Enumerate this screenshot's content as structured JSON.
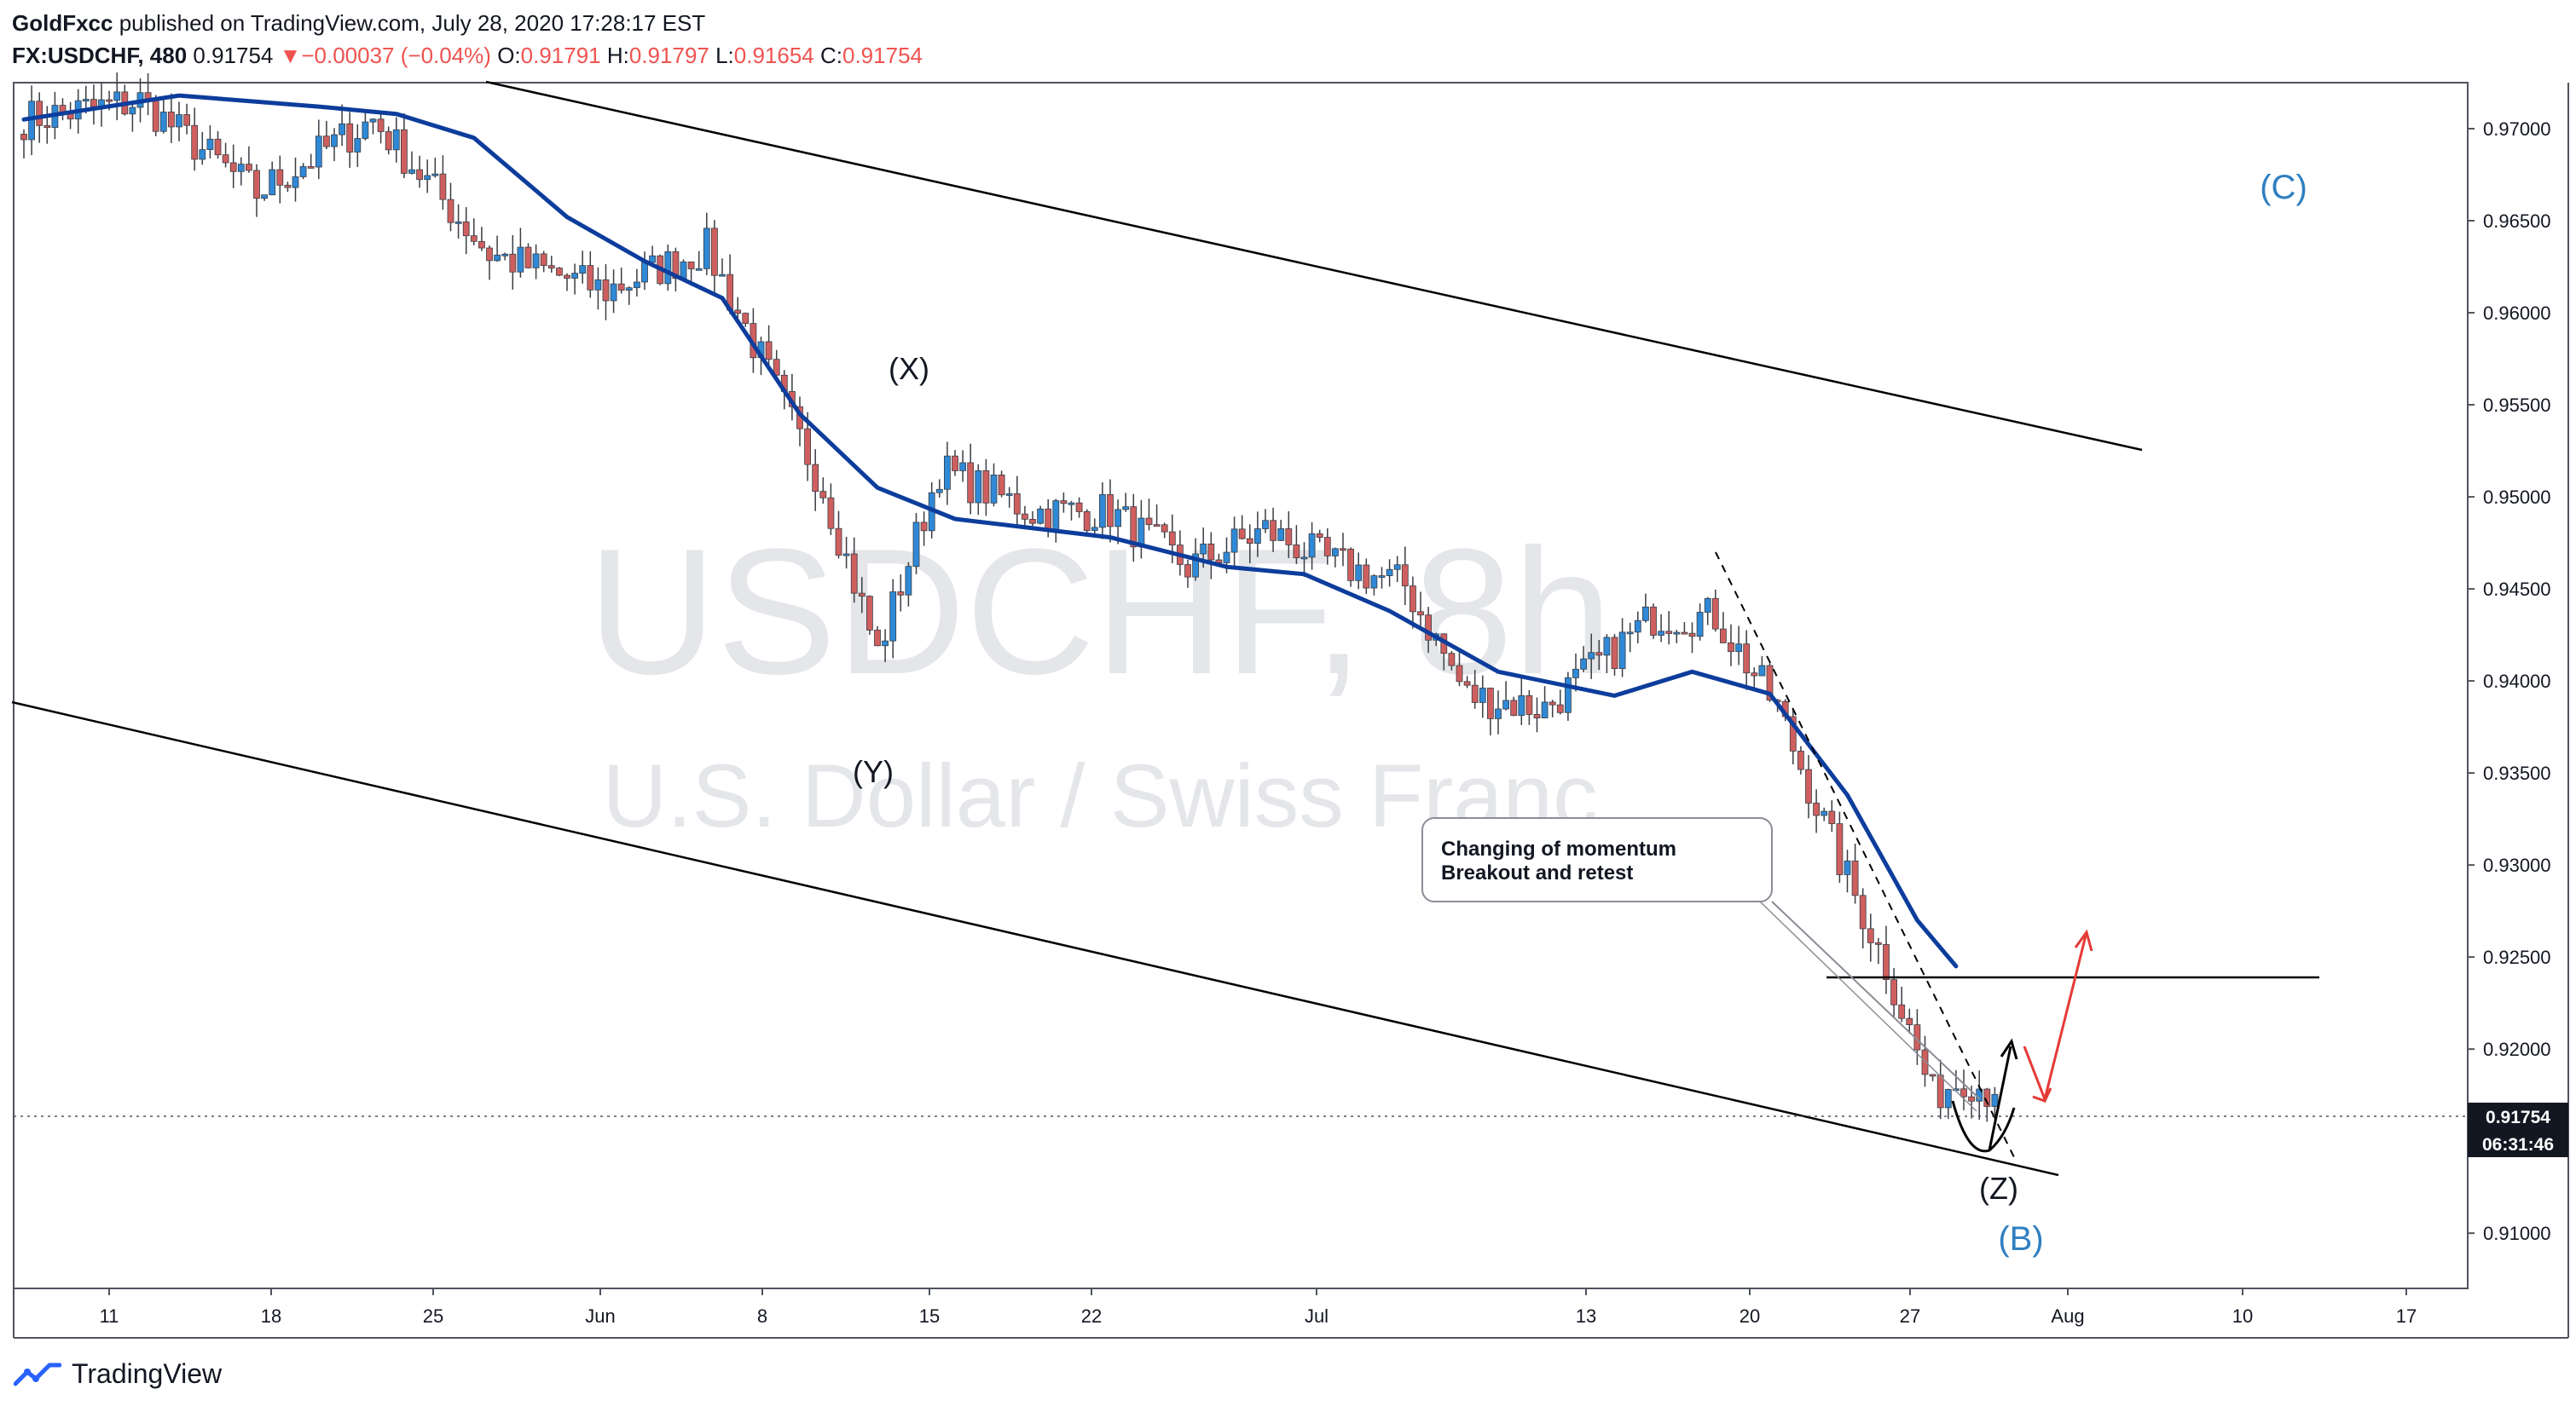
{
  "header": {
    "publisher": "GoldFxcc",
    "published_text": "published on TradingView.com, July 28, 2020 17:28:17 EST",
    "symbol": "FX:USDCHF, 480",
    "last": "0.91754",
    "change_arrow": "▼",
    "change": "−0.00037 (−0.04%)",
    "o_label": "O:",
    "o": "0.91791",
    "h_label": "H:",
    "h": "0.91797",
    "l_label": "L:",
    "l": "0.91654",
    "c_label": "C:",
    "c": "0.91754"
  },
  "watermark": {
    "line1": "USDCHF, 8h",
    "line2": "U.S. Dollar / Swiss Franc"
  },
  "price_tag": {
    "price": "0.91754",
    "countdown": "06:31:46"
  },
  "footer": {
    "brand": "TradingView",
    "logo_icon": "tradingview-logo-icon"
  },
  "colors": {
    "up": "#2f89d6",
    "down": "#cf5f5f",
    "ma": "#0d3d9c",
    "accent_blue": "#2f7fc1",
    "arrow_red": "#e53935"
  },
  "chart_data": {
    "type": "candlestick",
    "symbol": "FX:USDCHF",
    "interval": "480",
    "ylim": [
      0.907,
      0.9725
    ],
    "y_ticks": [
      "0.97000",
      "0.96500",
      "0.96000",
      "0.95500",
      "0.95000",
      "0.94500",
      "0.94000",
      "0.93500",
      "0.93000",
      "0.92500",
      "0.92000",
      "0.91500",
      "0.91000"
    ],
    "x_ticks": [
      "11",
      "18",
      "25",
      "Jun",
      "8",
      "15",
      "22",
      "Jul",
      "13",
      "20",
      "27",
      "Aug",
      "10",
      "17"
    ],
    "last_price": 0.91754,
    "key_points": [
      {
        "bar": 0,
        "close": 0.9705
      },
      {
        "bar": 15,
        "close": 0.9715
      },
      {
        "bar": 30,
        "close": 0.9665
      },
      {
        "bar": 45,
        "close": 0.9705
      },
      {
        "bar": 60,
        "close": 0.9632
      },
      {
        "bar": 75,
        "close": 0.9612
      },
      {
        "bar": 88,
        "close": 0.9635
      },
      {
        "bar": 95,
        "close": 0.9575
      },
      {
        "bar": 103,
        "close": 0.9505
      },
      {
        "bar": 110,
        "close": 0.9415
      },
      {
        "bar": 118,
        "close": 0.9515
      },
      {
        "bar": 130,
        "close": 0.9492
      },
      {
        "bar": 140,
        "close": 0.9492
      },
      {
        "bar": 150,
        "close": 0.9462
      },
      {
        "bar": 160,
        "close": 0.9482
      },
      {
        "bar": 168,
        "close": 0.9465
      },
      {
        "bar": 178,
        "close": 0.9452
      },
      {
        "bar": 186,
        "close": 0.9392
      },
      {
        "bar": 196,
        "close": 0.9385
      },
      {
        "bar": 210,
        "close": 0.9435
      },
      {
        "bar": 218,
        "close": 0.9435
      },
      {
        "bar": 226,
        "close": 0.9385
      },
      {
        "bar": 233,
        "close": 0.9312
      },
      {
        "bar": 240,
        "close": 0.9245
      },
      {
        "bar": 246,
        "close": 0.9175
      },
      {
        "bar": 250,
        "close": 0.9185
      },
      {
        "bar": 254,
        "close": 0.91754
      }
    ],
    "moving_average": {
      "color": "#0d3d9c",
      "points": [
        {
          "bar": 0,
          "value": 0.9705
        },
        {
          "bar": 20,
          "value": 0.9718
        },
        {
          "bar": 38,
          "value": 0.9712
        },
        {
          "bar": 48,
          "value": 0.9708
        },
        {
          "bar": 58,
          "value": 0.9695
        },
        {
          "bar": 70,
          "value": 0.9652
        },
        {
          "bar": 80,
          "value": 0.9628
        },
        {
          "bar": 90,
          "value": 0.9608
        },
        {
          "bar": 100,
          "value": 0.9545
        },
        {
          "bar": 110,
          "value": 0.9505
        },
        {
          "bar": 120,
          "value": 0.9488
        },
        {
          "bar": 140,
          "value": 0.9478
        },
        {
          "bar": 155,
          "value": 0.9462
        },
        {
          "bar": 165,
          "value": 0.9458
        },
        {
          "bar": 176,
          "value": 0.9438
        },
        {
          "bar": 190,
          "value": 0.9405
        },
        {
          "bar": 205,
          "value": 0.9392
        },
        {
          "bar": 215,
          "value": 0.9405
        },
        {
          "bar": 225,
          "value": 0.9393
        },
        {
          "bar": 235,
          "value": 0.9338
        },
        {
          "bar": 244,
          "value": 0.927
        },
        {
          "bar": 249,
          "value": 0.9245
        }
      ]
    },
    "annotations": {
      "wave_labels": [
        {
          "text": "(X)",
          "color": "#131722"
        },
        {
          "text": "(Y)",
          "color": "#131722"
        },
        {
          "text": "(Z)",
          "color": "#131722"
        },
        {
          "text": "(B)",
          "color": "#2f7fc1"
        },
        {
          "text": "(C)",
          "color": "#2f7fc1"
        }
      ],
      "callout_lines": [
        "Changing of momentum",
        "Breakout and retest"
      ],
      "horizontal_level": 0.925
    }
  }
}
